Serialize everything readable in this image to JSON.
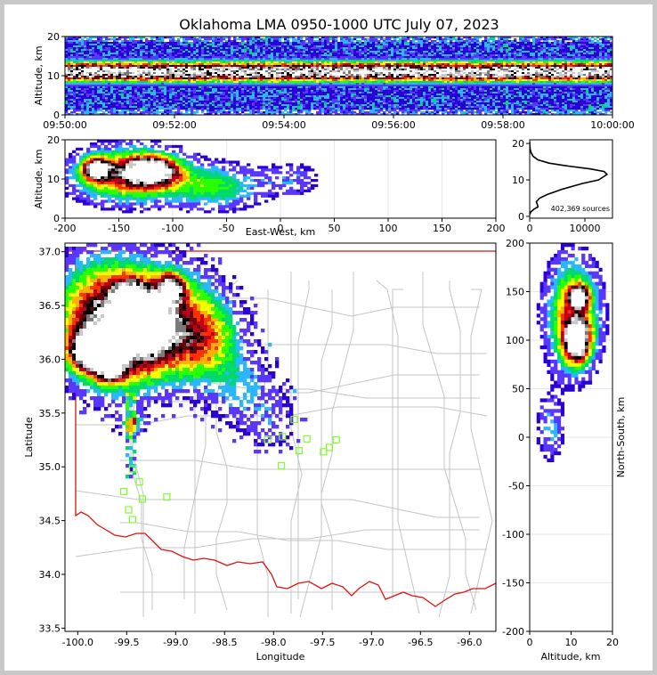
{
  "chart_data": {
    "title": "Oklahoma LMA 0950-1000 UTC July 07, 2023",
    "source_count_label": "402,369 sources",
    "colormap": [
      "#2a00d6",
      "#5a37ff",
      "#2bb7ff",
      "#00d96c",
      "#28ff00",
      "#f2ff00",
      "#ffb000",
      "#ff3000",
      "#c0001a",
      "#6a000a",
      "#000000",
      "#7a7a7a",
      "#c8c8c8",
      "#ffffff"
    ],
    "panels": [
      {
        "id": "time-altitude",
        "type": "heatmap",
        "xlabel": "",
        "ylabel": "Altitude, km",
        "xticks": [
          "09:50:00",
          "09:52:00",
          "09:54:00",
          "09:56:00",
          "09:58:00",
          "10:00:00"
        ],
        "xlim_minutes": [
          0,
          10
        ],
        "yticks": [
          0,
          10,
          20
        ],
        "ylim": [
          0,
          20
        ],
        "peak_altitude_km": 11
      },
      {
        "id": "east-west-altitude",
        "type": "heatmap",
        "xlabel": "East-West, km",
        "ylabel": "Altitude, km",
        "xticks": [
          -200,
          -150,
          -100,
          -50,
          0,
          50,
          100,
          150,
          200
        ],
        "xlim": [
          -200,
          200
        ],
        "yticks": [
          0,
          10,
          20
        ],
        "ylim": [
          0,
          20
        ]
      },
      {
        "id": "altitude-histogram",
        "type": "line",
        "xlabel": "",
        "ylabel": "",
        "xticks": [
          0,
          10000
        ],
        "xlim": [
          0,
          15000
        ],
        "yticks": [
          0,
          10,
          20
        ],
        "ylim": [
          -0.5,
          21
        ],
        "x": [
          0,
          200,
          800,
          1500,
          1400,
          1200,
          1800,
          3200,
          6000,
          9500,
          12500,
          14000,
          13500,
          11000,
          7000,
          3500,
          1500,
          600,
          250,
          80,
          20,
          0
        ],
        "y": [
          0.5,
          1.2,
          2.0,
          2.6,
          3.2,
          4.0,
          5.0,
          6.0,
          7.5,
          9.0,
          10.0,
          11.5,
          12.3,
          13.0,
          13.8,
          14.6,
          15.5,
          16.5,
          17.5,
          18.5,
          19.5,
          20.5
        ]
      },
      {
        "id": "plan-view",
        "type": "heatmap",
        "xlabel": "Longitude",
        "ylabel": "Latitude",
        "xticks": [
          -100.0,
          -99.5,
          -99.0,
          -98.5,
          -98.0,
          -97.5,
          -97.0,
          -96.5,
          -96.0
        ],
        "xlim": [
          -100.13,
          -95.73
        ],
        "yticks": [
          33.5,
          34.0,
          34.5,
          35.0,
          35.5,
          36.0,
          36.5,
          37.0
        ],
        "ylim": [
          33.47,
          37.08
        ],
        "stations": [
          {
            "lon": -99.53,
            "lat": 34.77
          },
          {
            "lon": -99.48,
            "lat": 34.6
          },
          {
            "lon": -99.44,
            "lat": 34.51
          },
          {
            "lon": -99.44,
            "lat": 34.98
          },
          {
            "lon": -99.37,
            "lat": 34.86
          },
          {
            "lon": -99.34,
            "lat": 34.7
          },
          {
            "lon": -99.09,
            "lat": 34.72
          },
          {
            "lon": -98.06,
            "lat": 35.25
          },
          {
            "lon": -97.91,
            "lat": 35.28
          },
          {
            "lon": -97.92,
            "lat": 35.01
          },
          {
            "lon": -97.79,
            "lat": 35.44
          },
          {
            "lon": -97.74,
            "lat": 35.15
          },
          {
            "lon": -97.66,
            "lat": 35.26
          },
          {
            "lon": -97.49,
            "lat": 35.14
          },
          {
            "lon": -97.43,
            "lat": 35.18
          },
          {
            "lon": -97.36,
            "lat": 35.25
          }
        ]
      },
      {
        "id": "altitude-north-south",
        "type": "heatmap",
        "xlabel": "Altitude, km",
        "ylabel": "North-South, km",
        "xticks": [
          0,
          10,
          20
        ],
        "xlim": [
          0,
          20
        ],
        "yticks": [
          -200,
          -150,
          -100,
          -50,
          0,
          50,
          100,
          150,
          200
        ],
        "ylim": [
          -200,
          200
        ]
      }
    ]
  }
}
